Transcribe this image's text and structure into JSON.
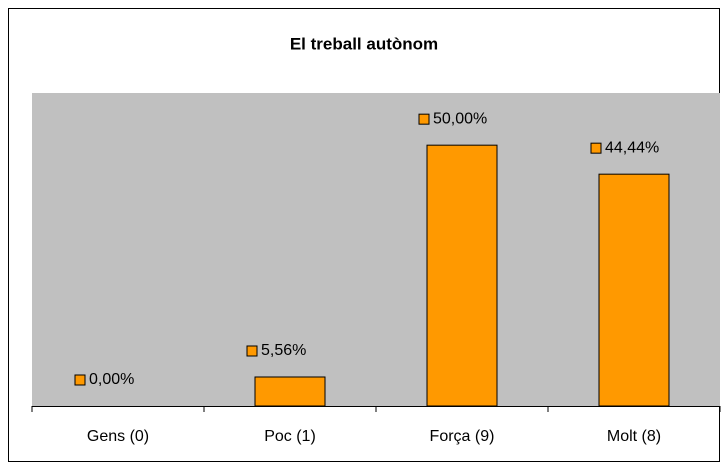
{
  "chart_data": {
    "type": "bar",
    "title": "El treball autònom",
    "categories": [
      "Gens (0)",
      "Poc (1)",
      "Força (9)",
      "Molt (8)"
    ],
    "values": [
      0,
      5.56,
      50,
      44.44
    ],
    "value_labels": [
      "0,00%",
      "5,56%",
      "50,00%",
      "44,44%"
    ],
    "color": "#ff9900",
    "ylim": [
      0,
      60
    ]
  }
}
